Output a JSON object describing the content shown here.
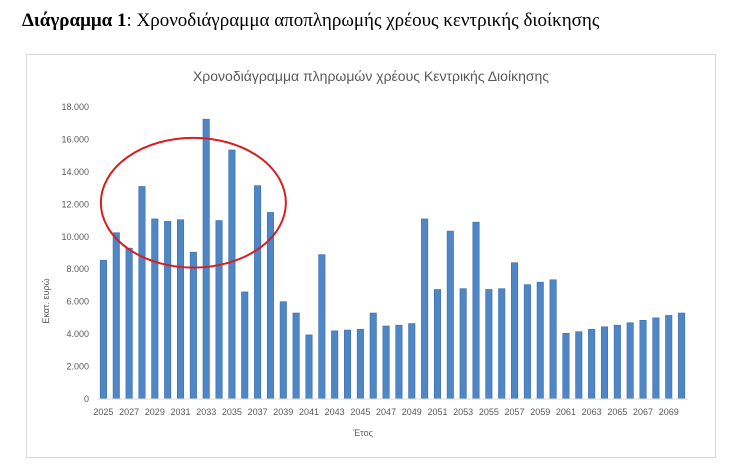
{
  "caption": {
    "label": "Διάγραμμα 1",
    "text": ": Χρονοδιάγραμμα αποπληρωμής χρέους κεντρικής διοίκησης"
  },
  "chart_data": {
    "type": "bar",
    "title": "Χρονοδιάγραμμα πληρωμών χρέους Κεντρικής Διοίκησης",
    "xlabel": "Έτος",
    "ylabel": "Εκατ. ευρώ",
    "ylim": [
      0,
      18000
    ],
    "yticks": [
      0,
      2000,
      4000,
      6000,
      8000,
      10000,
      12000,
      14000,
      16000,
      18000
    ],
    "ytick_labels": [
      "0",
      "2.000",
      "4.000",
      "6.000",
      "8.000",
      "10.000",
      "12.000",
      "14.000",
      "16.000",
      "18.000"
    ],
    "grid": false,
    "bar_color": "#4f86c6",
    "annotation": {
      "type": "ellipse",
      "color": "#d62020",
      "x_from": 2027,
      "x_to": 2037,
      "y_from": 8100,
      "y_to": 16100
    },
    "categories": [
      2025,
      2026,
      2027,
      2028,
      2029,
      2030,
      2031,
      2032,
      2033,
      2034,
      2035,
      2036,
      2037,
      2038,
      2039,
      2040,
      2041,
      2042,
      2043,
      2044,
      2045,
      2046,
      2047,
      2048,
      2049,
      2050,
      2051,
      2052,
      2053,
      2054,
      2055,
      2056,
      2057,
      2058,
      2059,
      2060,
      2061,
      2062,
      2063,
      2064,
      2065,
      2066,
      2067,
      2068,
      2069,
      2070
    ],
    "tick_labels": [
      "2025",
      "",
      "2027",
      "",
      "2029",
      "",
      "2031",
      "",
      "2033",
      "",
      "2035",
      "",
      "2037",
      "",
      "2039",
      "",
      "2041",
      "",
      "2043",
      "",
      "2045",
      "",
      "2047",
      "",
      "2049",
      "",
      "2051",
      "",
      "2053",
      "",
      "2055",
      "",
      "2057",
      "",
      "2059",
      "",
      "2061",
      "",
      "2063",
      "",
      "2065",
      "",
      "2067",
      "",
      "2069",
      ""
    ],
    "values": [
      8550,
      10250,
      9300,
      13100,
      11100,
      10950,
      11050,
      9050,
      17250,
      11000,
      15350,
      6600,
      13150,
      11500,
      6000,
      5300,
      3950,
      8900,
      4200,
      4250,
      4300,
      5300,
      4500,
      4550,
      4650,
      11100,
      6750,
      10350,
      6800,
      10900,
      6750,
      6800,
      8400,
      7050,
      7200,
      7350,
      4050,
      4150,
      4300,
      4450,
      4550,
      4700,
      4850,
      5000,
      5150,
      5300
    ]
  }
}
